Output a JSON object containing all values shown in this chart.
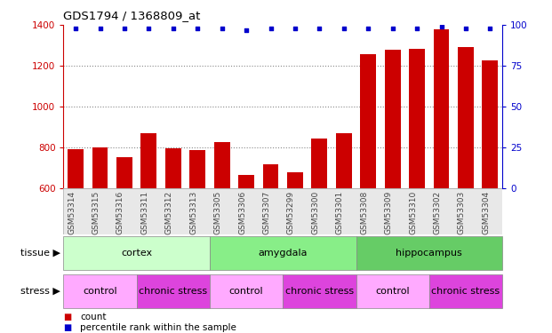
{
  "title": "GDS1794 / 1368809_at",
  "samples": [
    "GSM53314",
    "GSM53315",
    "GSM53316",
    "GSM53311",
    "GSM53312",
    "GSM53313",
    "GSM53305",
    "GSM53306",
    "GSM53307",
    "GSM53299",
    "GSM53300",
    "GSM53301",
    "GSM53308",
    "GSM53309",
    "GSM53310",
    "GSM53302",
    "GSM53303",
    "GSM53304"
  ],
  "bar_values": [
    790,
    800,
    750,
    870,
    795,
    785,
    825,
    665,
    715,
    680,
    845,
    870,
    1255,
    1280,
    1285,
    1380,
    1290,
    1225
  ],
  "percentile_values": [
    98,
    98,
    98,
    98,
    98,
    98,
    98,
    97,
    98,
    98,
    98,
    98,
    98,
    98,
    98,
    99,
    98,
    98
  ],
  "bar_color": "#cc0000",
  "dot_color": "#0000cc",
  "ylim_left": [
    600,
    1400
  ],
  "ylim_right": [
    0,
    100
  ],
  "yticks_left": [
    600,
    800,
    1000,
    1200,
    1400
  ],
  "yticks_right": [
    0,
    25,
    50,
    75,
    100
  ],
  "tissue_groups": [
    {
      "label": "cortex",
      "start": 0,
      "end": 6,
      "color": "#ccffcc"
    },
    {
      "label": "amygdala",
      "start": 6,
      "end": 12,
      "color": "#88ee88"
    },
    {
      "label": "hippocampus",
      "start": 12,
      "end": 18,
      "color": "#66cc66"
    }
  ],
  "stress_groups": [
    {
      "label": "control",
      "start": 0,
      "end": 3,
      "color": "#ffaaff"
    },
    {
      "label": "chronic stress",
      "start": 3,
      "end": 6,
      "color": "#dd44dd"
    },
    {
      "label": "control",
      "start": 6,
      "end": 9,
      "color": "#ffaaff"
    },
    {
      "label": "chronic stress",
      "start": 9,
      "end": 12,
      "color": "#dd44dd"
    },
    {
      "label": "control",
      "start": 12,
      "end": 15,
      "color": "#ffaaff"
    },
    {
      "label": "chronic stress",
      "start": 15,
      "end": 18,
      "color": "#dd44dd"
    }
  ],
  "tissue_label": "tissue",
  "stress_label": "stress",
  "legend_count_label": "count",
  "legend_pct_label": "percentile rank within the sample",
  "grid_color": "#888888",
  "background_color": "#ffffff",
  "xticklabel_color": "#444444",
  "left_axis_color": "#cc0000",
  "right_axis_color": "#0000cc"
}
